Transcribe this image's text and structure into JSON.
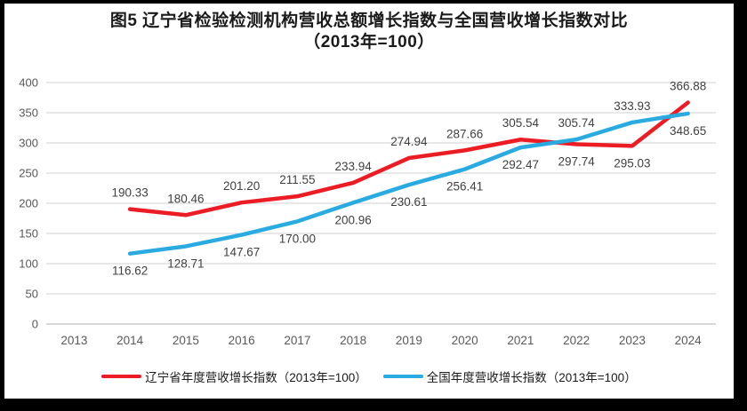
{
  "chart_data": {
    "type": "line",
    "title": "图5  辽宁省检验检测机构营收总额增长指数与全国营收增长指数对比",
    "subtitle": "（2013年=100）",
    "categories": [
      "2013",
      "2014",
      "2015",
      "2016",
      "2017",
      "2018",
      "2019",
      "2020",
      "2021",
      "2022",
      "2023",
      "2024"
    ],
    "series": [
      {
        "name": "辽宁省年度营收增长指数（2013年=100）",
        "color": "#EC1C24",
        "values": [
          null,
          190.33,
          180.46,
          201.2,
          211.55,
          233.94,
          274.94,
          287.66,
          305.54,
          297.74,
          295.03,
          366.88
        ],
        "value_labels": [
          null,
          "190.33",
          "180.46",
          "201.20",
          "211.55",
          "233.94",
          "274.94",
          "287.66",
          "305.54",
          "297.74",
          "295.03",
          "366.88"
        ],
        "label_above": [
          null,
          true,
          true,
          true,
          true,
          true,
          true,
          true,
          true,
          false,
          false,
          true
        ]
      },
      {
        "name": "全国年度营收增长指数（2013年=100）",
        "color": "#29ABE2",
        "values": [
          null,
          116.62,
          128.71,
          147.67,
          170.0,
          200.96,
          230.61,
          256.41,
          292.47,
          305.74,
          333.93,
          348.65
        ],
        "value_labels": [
          null,
          "116.62",
          "128.71",
          "147.67",
          "170.00",
          "200.96",
          "230.61",
          "256.41",
          "292.47",
          "305.74",
          "333.93",
          "348.65"
        ],
        "label_above": [
          null,
          false,
          false,
          false,
          false,
          false,
          false,
          false,
          false,
          true,
          true,
          false
        ]
      }
    ],
    "ylim": [
      0,
      400
    ],
    "ytick_step": 50,
    "grid": "horizontal-only",
    "legend_position": "bottom",
    "styles": {
      "background": "#FFFFFF",
      "border_color": "#000000",
      "gridline_color": "#D9D9D9",
      "axis_line_color": "#BFBFBF",
      "tick_label_color": "#595959",
      "data_label_color": "#404040"
    }
  }
}
